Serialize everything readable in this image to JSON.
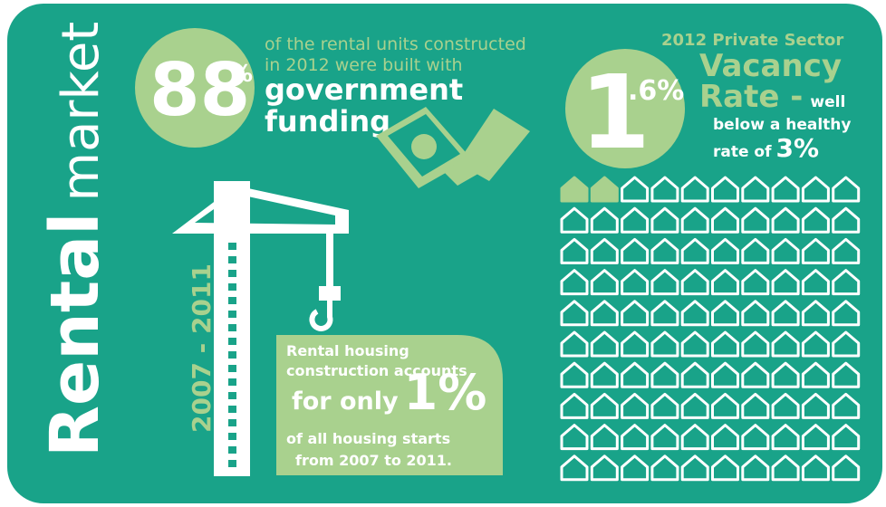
{
  "side_title": {
    "bold": "Rental",
    "light": "market"
  },
  "funding": {
    "number": "88",
    "unit": "%",
    "lines": [
      "of the rental units constructed",
      "in 2012 were built with"
    ],
    "emphasis": [
      "government",
      "funding"
    ]
  },
  "vacancy": {
    "number": "1",
    "decimal": ".6%",
    "heading": "2012 Private Sector",
    "title_1": "Vacancy",
    "title_2": "Rate -",
    "note_1": "well",
    "note_2": "below a healthy",
    "note_3": "rate of",
    "healthy_rate": "3%"
  },
  "construction": {
    "period": "2007 - 2011",
    "line_1": "Rental housing",
    "line_2": "construction accounts",
    "lead": "for only",
    "share": "1%",
    "line_3": "of all housing starts",
    "line_4": "from 2007 to 2011."
  }
}
